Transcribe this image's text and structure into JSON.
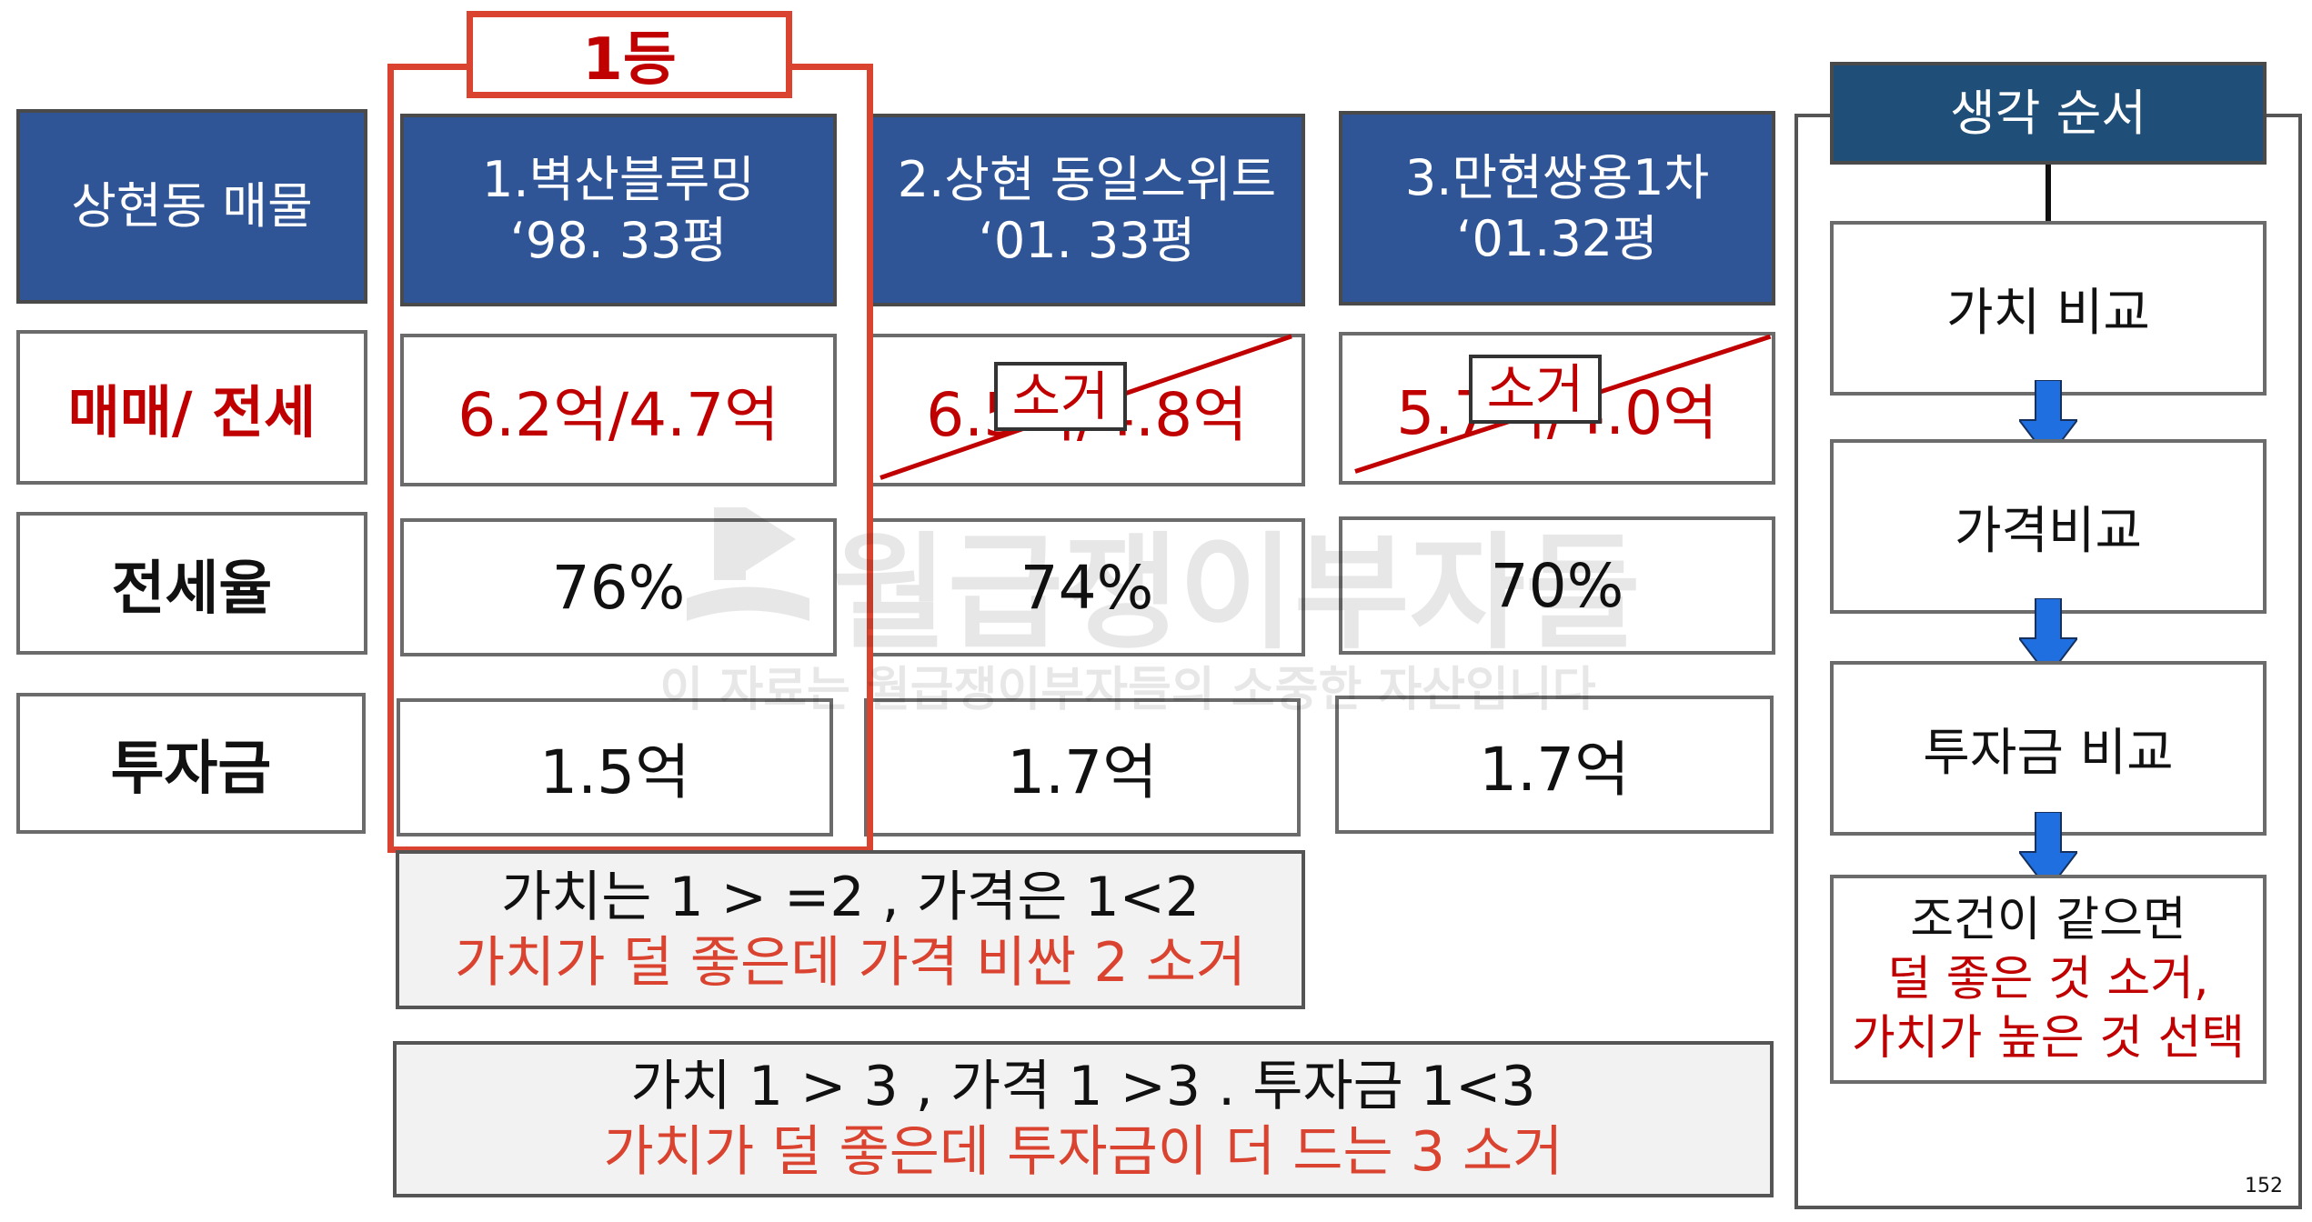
{
  "rank_badge": "1등",
  "row_header": {
    "title": "상현동 매물",
    "trade_label": "매매/ 전세",
    "jeonse_rate_label": "전세율",
    "investment_label": "투자금"
  },
  "properties": [
    {
      "name": "1.벽산블루밍",
      "spec": "‘98. 33평",
      "price": "6.2억/4.7억",
      "jeonse_rate": "76%",
      "investment": "1.5억"
    },
    {
      "name": "2.상현 동일스위트",
      "spec": "‘01. 33평",
      "price": "6.5억/4.8억",
      "jeonse_rate": "74%",
      "investment": "1.7억",
      "eliminated_label": "소거"
    },
    {
      "name": "3.만현쌍용1차",
      "spec": "‘01.32평",
      "price": "5.7억/4.0억",
      "jeonse_rate": "70%",
      "investment": "1.7억",
      "eliminated_label": "소거"
    }
  ],
  "notes": [
    {
      "line1": "가치는  1 > =2 , 가격은  1<2",
      "line2": "가치가 덜 좋은데  가격 비싼 2 소거"
    },
    {
      "line1": "가치   1 > 3 ,  가격 1 >3 . 투자금  1<3",
      "line2": "가치가 덜 좋은데 투자금이 더 드는 3 소거"
    }
  ],
  "process": {
    "title": "생각 순서",
    "steps": [
      "가치 비교",
      "가격비교",
      "투자금 비교"
    ],
    "final": {
      "line1": "조건이 같으면",
      "line2": "덜 좋은 것 소거,",
      "line3": "가치가 높은 것 선택"
    }
  },
  "watermark": {
    "main": "월급쟁이부자들",
    "sub": "이 자료는 월급쟁이부자들의 소중한 자산입니다"
  },
  "page_number": "152",
  "colors": {
    "header_blue": "#2f5597",
    "accent_red": "#c00000",
    "highlight_red": "#d9432f",
    "arrow_blue": "#1f6fe0"
  }
}
